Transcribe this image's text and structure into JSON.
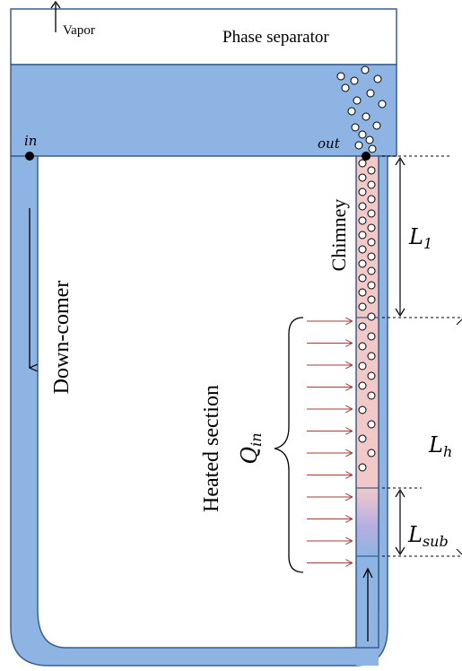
{
  "labels": {
    "vapor": "Vapor",
    "phase_separator": "Phase separator",
    "in": "in",
    "out": "out",
    "chimney": "Chimney",
    "downcomer": "Down-comer",
    "heated_section": "Heated section",
    "q": "Q",
    "q_sub": "in",
    "l1": "L",
    "l1_sub": "1",
    "lh": "L",
    "lh_sub": "h",
    "lsub": "L",
    "lsub_sub": "sub"
  },
  "colors": {
    "water": "#8eb4e3",
    "outline": "#3a5f8f",
    "heated_fluid": "#f2c9c9",
    "heater_arrow": "#a33a3a",
    "bubble_fill": "#ffffff"
  }
}
